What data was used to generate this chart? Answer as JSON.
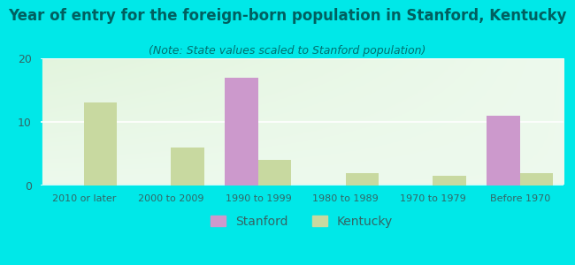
{
  "title": "Year of entry for the foreign-born population in Stanford, Kentucky",
  "subtitle": "(Note: State values scaled to Stanford population)",
  "categories": [
    "2010 or later",
    "2000 to 2009",
    "1990 to 1999",
    "1980 to 1989",
    "1970 to 1979",
    "Before 1970"
  ],
  "stanford_values": [
    0,
    0,
    17,
    0,
    0,
    11
  ],
  "kentucky_values": [
    13,
    6,
    4,
    2,
    1.5,
    2
  ],
  "stanford_color": "#cc99cc",
  "kentucky_color": "#c8d9a0",
  "background_outer": "#00e8e8",
  "background_inner_topleft": "#e8f5e0",
  "background_inner_bottomleft": "#c8e8c0",
  "ylim": [
    0,
    20
  ],
  "yticks": [
    0,
    10,
    20
  ],
  "bar_width": 0.38,
  "title_fontsize": 12,
  "subtitle_fontsize": 9,
  "title_color": "#006060",
  "subtitle_color": "#007070",
  "tick_color": "#336666",
  "legend_stanford": "Stanford",
  "legend_kentucky": "Kentucky"
}
